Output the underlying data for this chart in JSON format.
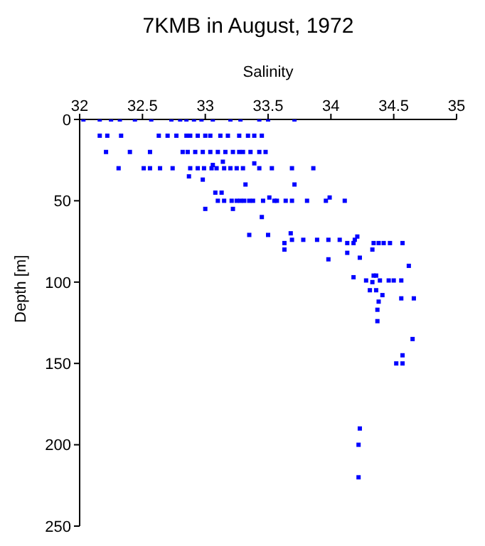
{
  "chart_data": {
    "type": "scatter",
    "title": "7KMB in August, 1972",
    "xlabel": "Salinity",
    "ylabel": "Depth [m]",
    "xlim": [
      32,
      35
    ],
    "xticks": [
      32,
      32.5,
      33,
      33.5,
      34,
      34.5,
      35
    ],
    "ylim": [
      250,
      0
    ],
    "yticks": [
      0,
      50,
      100,
      150,
      200,
      250
    ],
    "marker": "square",
    "grid": false,
    "legend": false,
    "series": [
      {
        "color": "#0000ff",
        "x": [
          32.03,
          32.16,
          32.25,
          32.32,
          32.44,
          32.57,
          32.73,
          32.8,
          32.85,
          32.91,
          32.97,
          33.06,
          33.2,
          33.28,
          33.43,
          33.5,
          33.71,
          32.16,
          32.22,
          32.33,
          32.63,
          32.7,
          32.77,
          32.85,
          32.88,
          32.94,
          33,
          33.04,
          33.12,
          33.18,
          33.27,
          33.34,
          33.39,
          33.45,
          32.21,
          32.4,
          32.56,
          32.82,
          32.86,
          32.92,
          32.98,
          33.04,
          33.1,
          33.16,
          33.22,
          33.27,
          33.3,
          33.36,
          33.43,
          33.48,
          33.14,
          32.31,
          32.51,
          32.56,
          32.64,
          32.74,
          32.88,
          32.94,
          32.99,
          33.05,
          33.09,
          33.15,
          33.2,
          33.25,
          33.3,
          33.43,
          33.53,
          33.69,
          33.86,
          33.06,
          33.39,
          32.87,
          32.98,
          33.32,
          33.71,
          33.08,
          33.13,
          33.1,
          33.15,
          33.21,
          33.25,
          33.28,
          33.31,
          33.35,
          33.38,
          33.46,
          33.51,
          33.55,
          33.57,
          33.64,
          33.69,
          33.81,
          33.96,
          33.99,
          34.11,
          33,
          33.22,
          33.45,
          33.68,
          33.35,
          33.5,
          34.21,
          33.78,
          33.89,
          33.98,
          34.07,
          34.19,
          33.69,
          33.63,
          34.13,
          34.18,
          34.34,
          34.38,
          34.42,
          34.47,
          34.57,
          33.63,
          34.33,
          34.13,
          34.23,
          33.98,
          34.62,
          34.34,
          34.36,
          34.18,
          34.28,
          34.39,
          34.46,
          34.5,
          34.56,
          34.33,
          34.36,
          34.31,
          34.41,
          34.56,
          34.66,
          34.38,
          34.37,
          34.37,
          34.65,
          34.57,
          34.52,
          34.57,
          34.23,
          34.22,
          34.22
        ],
        "values": [
          0,
          0,
          0,
          0,
          0,
          0,
          0,
          0,
          0,
          0,
          0,
          0,
          0,
          0,
          0,
          0,
          0,
          10,
          10,
          10,
          10,
          10,
          10,
          10,
          10,
          10,
          10,
          10,
          10,
          10,
          10,
          10,
          10,
          10,
          20,
          20,
          20,
          20,
          20,
          20,
          20,
          20,
          20,
          20,
          20,
          20,
          20,
          20,
          20,
          20,
          26,
          30,
          30,
          30,
          30,
          30,
          30,
          30,
          30,
          30,
          30,
          30,
          30,
          30,
          30,
          30,
          30,
          30,
          30,
          28,
          27,
          35,
          37,
          40,
          40,
          45,
          45,
          50,
          50,
          50,
          50,
          50,
          50,
          50,
          50,
          50,
          48,
          50,
          50,
          50,
          50,
          50,
          50,
          48,
          50,
          55,
          55,
          60,
          70,
          71,
          71,
          72,
          74,
          74,
          74,
          74,
          74,
          74,
          76,
          76,
          76,
          76,
          76,
          76,
          76,
          76,
          80,
          80,
          82,
          85,
          86,
          90,
          96,
          96,
          97,
          99,
          99,
          99,
          99,
          99,
          100,
          105,
          105,
          108,
          110,
          110,
          112,
          117,
          124,
          135,
          145,
          150,
          150,
          190,
          200,
          220
        ]
      }
    ]
  }
}
